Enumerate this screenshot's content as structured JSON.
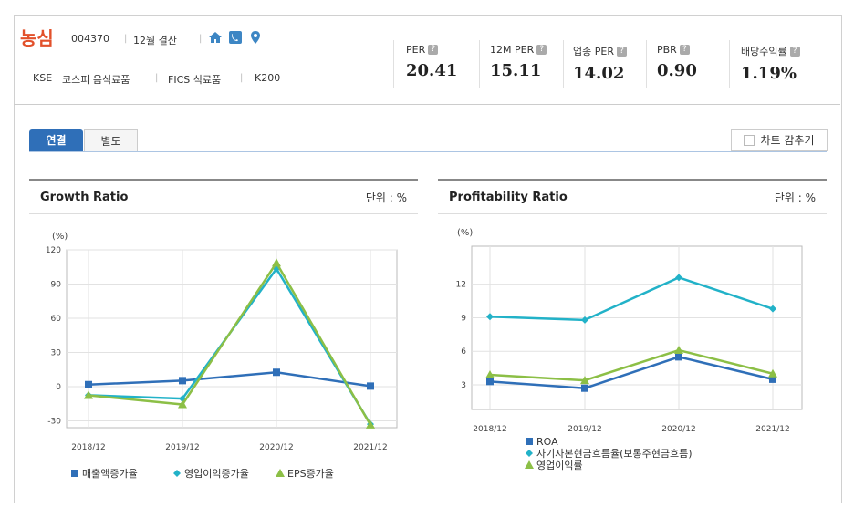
{
  "company": {
    "name": "농심",
    "code": "004370",
    "settlement": "12월 결산",
    "market": "KSE",
    "sector1": "코스피 음식료품",
    "sector2": "FICS 식료품",
    "index": "K200",
    "icons": [
      "home-icon",
      "phone-icon",
      "location-icon"
    ]
  },
  "metrics": [
    {
      "label": "PER",
      "value": "20.41"
    },
    {
      "label": "12M PER",
      "value": "15.11"
    },
    {
      "label": "업종 PER",
      "value": "14.02"
    },
    {
      "label": "PBR",
      "value": "0.90"
    },
    {
      "label": "배당수익률",
      "value": "1.19%"
    }
  ],
  "help_glyph": "?",
  "tabs": {
    "consolidated": "연결",
    "separate": "별도"
  },
  "hide_chart_label": "차트 감추기",
  "colors": {
    "blue": "#2f6fb8",
    "teal": "#22b2c8",
    "green": "#8cbf46",
    "accent": "#e2512b"
  },
  "panels": {
    "growth": {
      "title": "Growth Ratio",
      "unit": "단위 : %"
    },
    "profit": {
      "title": "Profitability Ratio",
      "unit": "단위 : %"
    }
  },
  "chart_data": [
    {
      "type": "line",
      "title": "Growth Ratio",
      "ylabel": "(%)",
      "categories": [
        "2018/12",
        "2019/12",
        "2020/12",
        "2021/12"
      ],
      "ylim": [
        -36,
        120
      ],
      "yticks": [
        120,
        90,
        60,
        30,
        0,
        -30
      ],
      "grid": true,
      "legend": "bottom",
      "series": [
        {
          "name": "매출액증가율",
          "color": "#2f6fb8",
          "marker": "square",
          "values": [
            1.8,
            5.3,
            12.6,
            0.5
          ]
        },
        {
          "name": "영업이익증가율",
          "color": "#22b2c8",
          "marker": "diamond",
          "values": [
            -7.5,
            -10.5,
            103.4,
            -32.9
          ]
        },
        {
          "name": "EPS증가율",
          "color": "#8cbf46",
          "marker": "triangle",
          "values": [
            -7.6,
            -15.6,
            108.6,
            -33.5
          ]
        }
      ]
    },
    {
      "type": "line",
      "title": "Profitability Ratio",
      "ylabel": "(%)",
      "categories": [
        "2018/12",
        "2019/12",
        "2020/12",
        "2021/12"
      ],
      "ylim": [
        0.8,
        15.4
      ],
      "yticks": [
        12,
        9,
        6,
        3
      ],
      "grid": true,
      "legend": "bottom",
      "series": [
        {
          "name": "ROA",
          "color": "#2f6fb8",
          "marker": "square",
          "values": [
            3.3,
            2.7,
            5.5,
            3.5
          ]
        },
        {
          "name": "자기자본현금흐름율(보통주현금흐름)",
          "color": "#22b2c8",
          "marker": "diamond",
          "values": [
            9.1,
            8.8,
            12.6,
            9.8
          ]
        },
        {
          "name": "영업이익률",
          "color": "#8cbf46",
          "marker": "triangle",
          "values": [
            3.9,
            3.4,
            6.1,
            4.0
          ]
        }
      ]
    }
  ]
}
